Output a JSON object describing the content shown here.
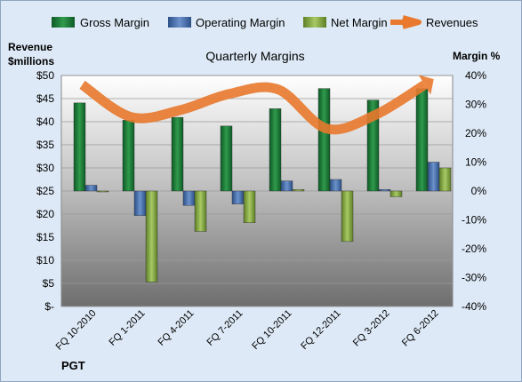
{
  "chart_data": {
    "type": "bar",
    "title": "Quarterly Margins",
    "company": "PGT",
    "left_axis_label_line1": "Revenue",
    "left_axis_label_line2": "$millions",
    "right_axis_label": "Margin %",
    "categories": [
      "FQ 10-2010",
      "FQ 1-2011",
      "FQ 4-2011",
      "FQ 7-2011",
      "FQ 10-2011",
      "FQ 12-2011",
      "FQ 3-2012",
      "FQ 6-2012"
    ],
    "left_ticks": [
      "$-",
      "$5",
      "$10",
      "$15",
      "$20",
      "$25",
      "$30",
      "$35",
      "$40",
      "$45",
      "$50"
    ],
    "right_ticks": [
      "-40%",
      "-30%",
      "-20%",
      "-10%",
      "0%",
      "10%",
      "20%",
      "30%",
      "40%"
    ],
    "ylim_left": [
      0,
      50
    ],
    "ylim_right": [
      -40,
      40
    ],
    "series": [
      {
        "name": "Gross Margin",
        "axis": "right",
        "kind": "bar",
        "color": "#1e7a3a",
        "values": [
          30.5,
          24.5,
          25.5,
          22.5,
          28.5,
          35.5,
          31.5,
          35.5
        ]
      },
      {
        "name": "Operating Margin",
        "axis": "right",
        "kind": "bar",
        "color": "#4a72b0",
        "values": [
          2.0,
          -8.5,
          -5.0,
          -4.5,
          3.5,
          4.0,
          0.5,
          10.0
        ]
      },
      {
        "name": "Net Margin",
        "axis": "right",
        "kind": "bar",
        "color": "#8db04a",
        "values": [
          0.0,
          -31.5,
          -14.0,
          -11.0,
          0.5,
          -17.5,
          -2.0,
          8.0
        ]
      },
      {
        "name": "Revenues",
        "axis": "left",
        "kind": "line",
        "color": "#e8792e",
        "values": [
          48.0,
          41.0,
          42.5,
          46.0,
          47.0,
          38.5,
          41.5,
          48.0
        ]
      }
    ]
  }
}
